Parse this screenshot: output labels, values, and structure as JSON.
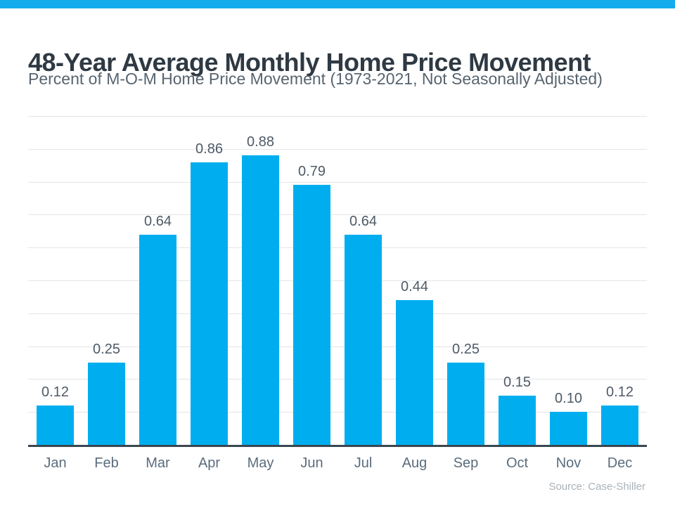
{
  "page": {
    "accent_color": "#12ACEC"
  },
  "header": {
    "title": "48-Year Average Monthly Home Price Movement",
    "subtitle": "Percent of M-O-M Home Price Movement (1973-2021, Not Seasonally Adjusted)"
  },
  "chart_data": {
    "type": "bar",
    "title": "48-Year Average Monthly Home Price Movement",
    "subtitle": "Percent of M-O-M Home Price Movement (1973-2021, Not Seasonally Adjusted)",
    "categories": [
      "Jan",
      "Feb",
      "Mar",
      "Apr",
      "May",
      "Jun",
      "Jul",
      "Aug",
      "Sep",
      "Oct",
      "Nov",
      "Dec"
    ],
    "values": [
      0.12,
      0.25,
      0.64,
      0.86,
      0.88,
      0.79,
      0.64,
      0.44,
      0.25,
      0.15,
      0.1,
      0.12
    ],
    "value_labels": [
      "0.12",
      "0.25",
      "0.64",
      "0.86",
      "0.88",
      "0.79",
      "0.64",
      "0.44",
      "0.25",
      "0.15",
      "0.10",
      "0.12"
    ],
    "xlabel": "",
    "ylabel": "",
    "ylim": [
      0,
      1.0
    ],
    "gridline_step": 0.1,
    "grid": true,
    "legend": "none",
    "bar_color": "#00AEEF",
    "source": "Source: Case-Shiller"
  },
  "footer": {
    "source": "Source: Case-Shiller"
  }
}
